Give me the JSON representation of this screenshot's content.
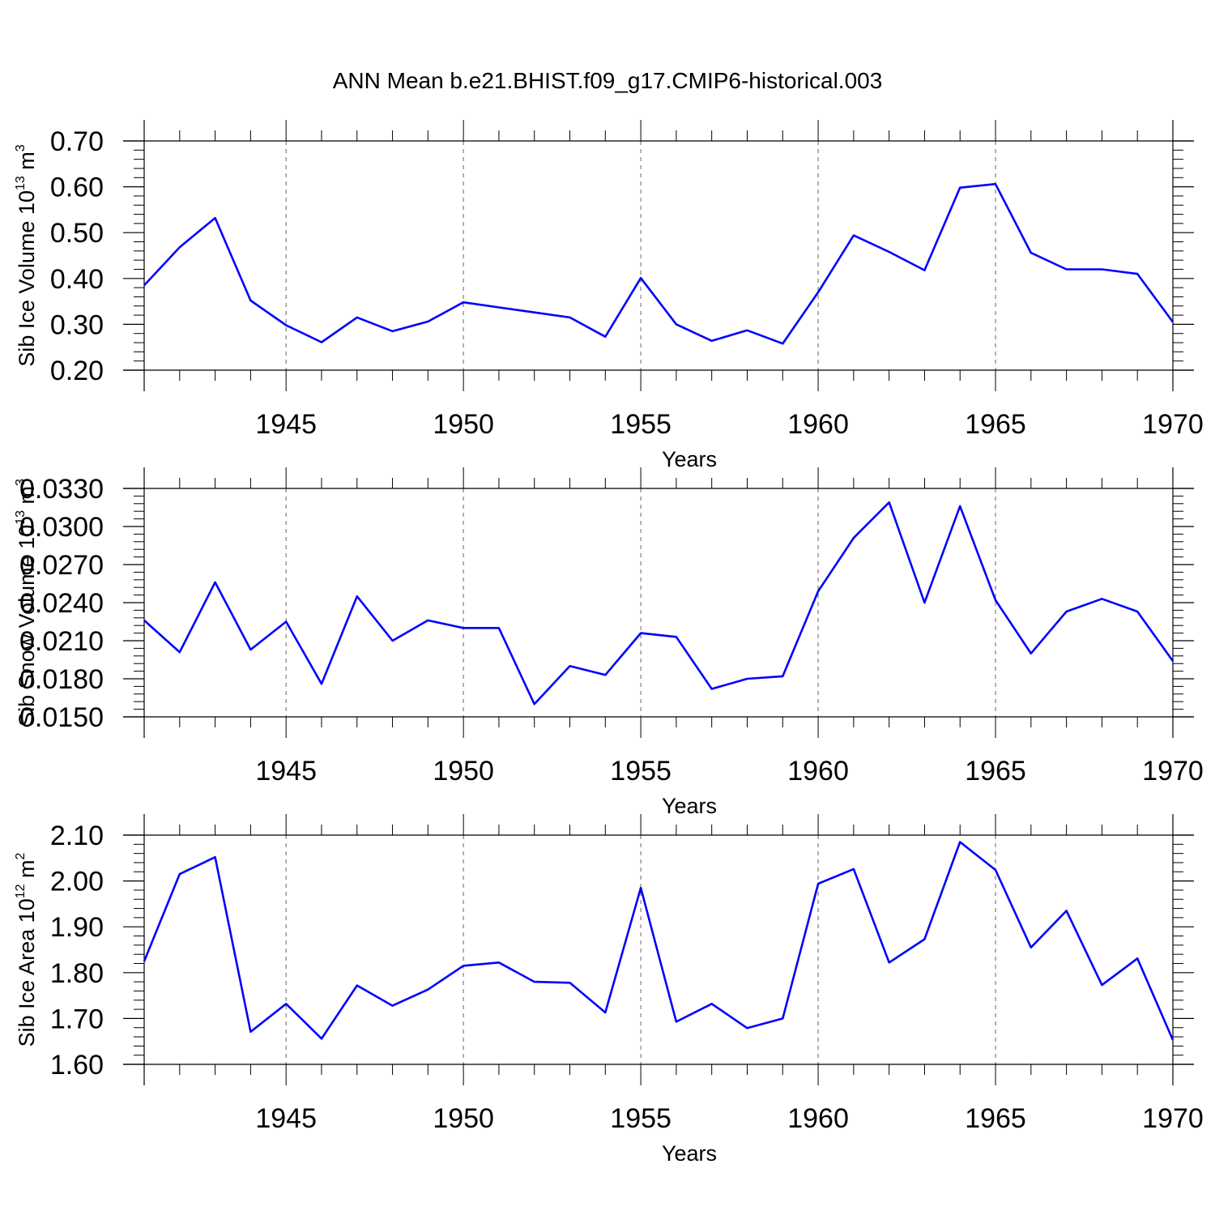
{
  "title": "ANN Mean b.e21.BHIST.f09_g17.CMIP6-historical.003",
  "colors": {
    "line": "#0000ff",
    "axis": "#000000",
    "grid": "#666666"
  },
  "chart_data": [
    {
      "type": "line",
      "xlabel": "Years",
      "ylabel": {
        "main": "Sib Ice Volume 10",
        "sup1": "13",
        "mid": " m",
        "sup2": "3"
      },
      "xlim": [
        1941,
        1970
      ],
      "ylim": [
        0.2,
        0.7
      ],
      "xticks": [
        1945,
        1950,
        1955,
        1960,
        1965,
        1970
      ],
      "xtick_labels": [
        "1945",
        "1950",
        "1955",
        "1960",
        "1965",
        "1970"
      ],
      "yticks": [
        0.2,
        0.3,
        0.4,
        0.5,
        0.6,
        0.7
      ],
      "ytick_labels": [
        "0.20",
        "0.30",
        "0.40",
        "0.50",
        "0.60",
        "0.70"
      ],
      "grid_x": true,
      "x": [
        1941,
        1942,
        1943,
        1944,
        1945,
        1946,
        1947,
        1948,
        1949,
        1950,
        1951,
        1952,
        1953,
        1954,
        1955,
        1956,
        1957,
        1958,
        1959,
        1960,
        1961,
        1962,
        1963,
        1964,
        1965,
        1966,
        1967,
        1968,
        1969,
        1970
      ],
      "series": [
        {
          "values": [
            0.385,
            0.468,
            0.532,
            0.352,
            0.298,
            0.261,
            0.315,
            0.285,
            0.306,
            0.348,
            0.337,
            0.326,
            0.315,
            0.273,
            0.401,
            0.3,
            0.264,
            0.287,
            0.258,
            0.37,
            0.494,
            0.458,
            0.418,
            0.598,
            0.606,
            0.456,
            0.42,
            0.42,
            0.41,
            0.305
          ]
        }
      ]
    },
    {
      "type": "line",
      "xlabel": "Years",
      "ylabel": {
        "main": "Sib Snow Volume 10",
        "sup1": "13",
        "mid": " m",
        "sup2": "3"
      },
      "xlim": [
        1941,
        1970
      ],
      "ylim": [
        0.015,
        0.033
      ],
      "xticks": [
        1945,
        1950,
        1955,
        1960,
        1965,
        1970
      ],
      "xtick_labels": [
        "1945",
        "1950",
        "1955",
        "1960",
        "1965",
        "1970"
      ],
      "yticks": [
        0.015,
        0.018,
        0.021,
        0.024,
        0.027,
        0.03,
        0.033
      ],
      "ytick_labels": [
        "0.0150",
        "0.0180",
        "0.0210",
        "0.0240",
        "0.0270",
        "0.0300",
        "0.0330"
      ],
      "grid_x": true,
      "x": [
        1941,
        1942,
        1943,
        1944,
        1945,
        1946,
        1947,
        1948,
        1949,
        1950,
        1951,
        1952,
        1953,
        1954,
        1955,
        1956,
        1957,
        1958,
        1959,
        1960,
        1961,
        1962,
        1963,
        1964,
        1965,
        1966,
        1967,
        1968,
        1969,
        1970
      ],
      "series": [
        {
          "values": [
            0.0226,
            0.0201,
            0.0256,
            0.0203,
            0.0225,
            0.0176,
            0.0245,
            0.021,
            0.0226,
            0.022,
            0.022,
            0.016,
            0.019,
            0.0183,
            0.0216,
            0.0213,
            0.0172,
            0.018,
            0.0182,
            0.0249,
            0.0291,
            0.0319,
            0.024,
            0.0316,
            0.0242,
            0.02,
            0.0233,
            0.0243,
            0.0233,
            0.0194
          ]
        }
      ]
    },
    {
      "type": "line",
      "xlabel": "Years",
      "ylabel": {
        "main": "Sib Ice Area 10",
        "sup1": "12",
        "mid": " m",
        "sup2": "2"
      },
      "xlim": [
        1941,
        1970
      ],
      "ylim": [
        1.6,
        2.1
      ],
      "xticks": [
        1945,
        1950,
        1955,
        1960,
        1965,
        1970
      ],
      "xtick_labels": [
        "1945",
        "1950",
        "1955",
        "1960",
        "1965",
        "1970"
      ],
      "yticks": [
        1.6,
        1.7,
        1.8,
        1.9,
        2.0,
        2.1
      ],
      "ytick_labels": [
        "1.60",
        "1.70",
        "1.80",
        "1.90",
        "2.00",
        "2.10"
      ],
      "grid_x": true,
      "x": [
        1941,
        1942,
        1943,
        1944,
        1945,
        1946,
        1947,
        1948,
        1949,
        1950,
        1951,
        1952,
        1953,
        1954,
        1955,
        1956,
        1957,
        1958,
        1959,
        1960,
        1961,
        1962,
        1963,
        1964,
        1965,
        1966,
        1967,
        1968,
        1969,
        1970
      ],
      "series": [
        {
          "values": [
            1.825,
            2.015,
            2.052,
            1.671,
            1.732,
            1.656,
            1.772,
            1.728,
            1.763,
            1.815,
            1.822,
            1.78,
            1.778,
            1.713,
            1.985,
            1.693,
            1.732,
            1.679,
            1.7,
            1.994,
            2.026,
            1.822,
            1.873,
            2.085,
            2.024,
            1.855,
            1.935,
            1.773,
            1.831,
            1.653
          ]
        }
      ]
    }
  ]
}
